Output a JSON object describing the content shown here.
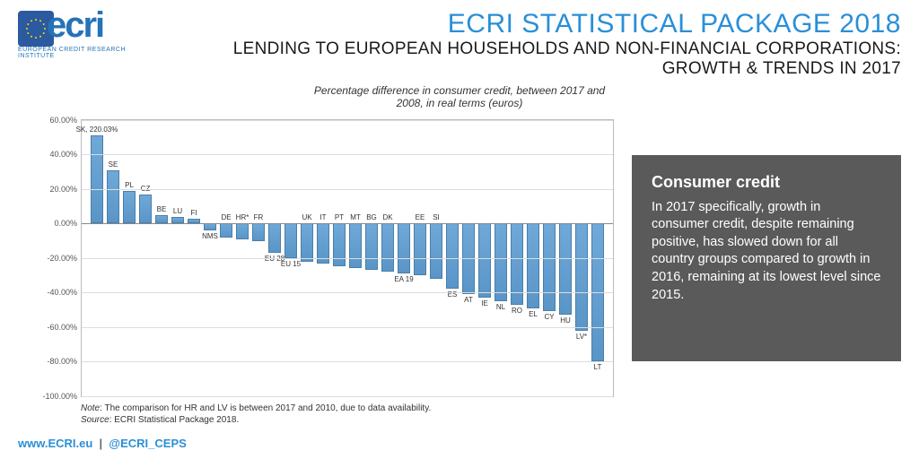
{
  "logo": {
    "letters": "ecri",
    "subtitle": "EUROPEAN CREDIT RESEARCH INSTITUTE"
  },
  "titles": {
    "main": "ECRI STATISTICAL PACKAGE 2018",
    "sub": "LENDING TO EUROPEAN HOUSEHOLDS AND NON-FINANCIAL CORPORATIONS: GROWTH & TRENDS IN 2017"
  },
  "chart": {
    "caption_l1": "Percentage difference in consumer credit, between 2017 and",
    "caption_l2": "2008, in real terms (euros)",
    "type": "bar",
    "ylim": [
      -100,
      60
    ],
    "ytick_step": 20,
    "y_ticks": [
      60,
      40,
      20,
      0,
      -20,
      -40,
      -60,
      -80,
      -100
    ],
    "bar_fill": "#6fa9d8",
    "bar_border": "#4a7fa8",
    "grid_color": "#dddddd",
    "border_color": "#bbbbbb",
    "background_color": "#ffffff",
    "label_fontsize": 8,
    "bars": [
      {
        "label": "SK, 220.03%",
        "value": 51,
        "label_side": "top"
      },
      {
        "label": "SE",
        "value": 31,
        "label_side": "top"
      },
      {
        "label": "PL",
        "value": 19,
        "label_side": "top"
      },
      {
        "label": "CZ",
        "value": 17,
        "label_side": "top"
      },
      {
        "label": "BE",
        "value": 5,
        "label_side": "top"
      },
      {
        "label": "LU",
        "value": 4,
        "label_side": "top"
      },
      {
        "label": "FI",
        "value": 3,
        "label_side": "top"
      },
      {
        "label": "NMS",
        "value": -4,
        "label_side": "bottom"
      },
      {
        "label": "DE",
        "value": -8,
        "label_side": "top"
      },
      {
        "label": "HR*",
        "value": -9,
        "label_side": "top"
      },
      {
        "label": "FR",
        "value": -10,
        "label_side": "top"
      },
      {
        "label": "EU 28",
        "value": -17,
        "label_side": "bottom"
      },
      {
        "label": "EU 15",
        "value": -20,
        "label_side": "bottom"
      },
      {
        "label": "UK",
        "value": -22,
        "label_side": "top"
      },
      {
        "label": "IT",
        "value": -23,
        "label_side": "top"
      },
      {
        "label": "PT",
        "value": -25,
        "label_side": "top"
      },
      {
        "label": "MT",
        "value": -26,
        "label_side": "top"
      },
      {
        "label": "BG",
        "value": -27,
        "label_side": "top"
      },
      {
        "label": "DK",
        "value": -28,
        "label_side": "top"
      },
      {
        "label": "EA 19",
        "value": -29,
        "label_side": "bottom"
      },
      {
        "label": "EE",
        "value": -30,
        "label_side": "top"
      },
      {
        "label": "SI",
        "value": -32,
        "label_side": "top"
      },
      {
        "label": "ES",
        "value": -38,
        "label_side": "bottom"
      },
      {
        "label": "AT",
        "value": -41,
        "label_side": "bottom"
      },
      {
        "label": "IE",
        "value": -43,
        "label_side": "bottom"
      },
      {
        "label": "NL",
        "value": -45,
        "label_side": "bottom"
      },
      {
        "label": "RO",
        "value": -47,
        "label_side": "bottom"
      },
      {
        "label": "EL",
        "value": -49,
        "label_side": "bottom"
      },
      {
        "label": "CY",
        "value": -51,
        "label_side": "bottom"
      },
      {
        "label": "HU",
        "value": -53,
        "label_side": "bottom"
      },
      {
        "label": "LV*",
        "value": -62,
        "label_side": "bottom"
      },
      {
        "label": "LT",
        "value": -80,
        "label_side": "bottom"
      }
    ],
    "note_label": "Note",
    "note_text": ": The comparison for HR and LV is between 2017 and 2010, due to data availability.",
    "source_label": "Source",
    "source_text": ": ECRI Statistical Package 2018."
  },
  "sidebar": {
    "title": "Consumer credit",
    "body": "In 2017 specifically, growth in consumer credit, despite re­maining positive, has slowed down for all country groups compared to growth in 2016, remaining at its lowest level since 2015."
  },
  "footer": {
    "url": "www.ECRI.eu",
    "sep": "|",
    "handle": "@ECRI_CEPS"
  },
  "colors": {
    "brand_blue": "#2a8fd8",
    "dark_blue": "#2b5aa0",
    "sidebar_bg": "#5a5a5a"
  }
}
